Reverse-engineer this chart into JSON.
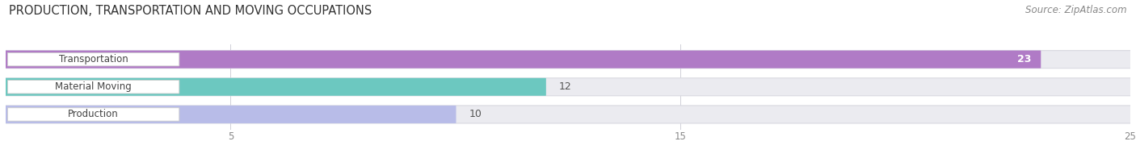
{
  "title": "PRODUCTION, TRANSPORTATION AND MOVING OCCUPATIONS",
  "source": "Source: ZipAtlas.com",
  "categories": [
    "Transportation",
    "Material Moving",
    "Production"
  ],
  "values": [
    23,
    12,
    10
  ],
  "bar_colors": [
    "#b07bc6",
    "#6cc8c0",
    "#b8bce8"
  ],
  "bar_labels": [
    "23",
    "12",
    "10"
  ],
  "xlim": [
    0,
    25
  ],
  "xticks": [
    5,
    15,
    25
  ],
  "background_color": "#ffffff",
  "bar_background_color": "#ebebf0",
  "title_fontsize": 10.5,
  "source_fontsize": 8.5,
  "label_fontsize": 8.5,
  "value_fontsize": 9,
  "bar_height": 0.62
}
